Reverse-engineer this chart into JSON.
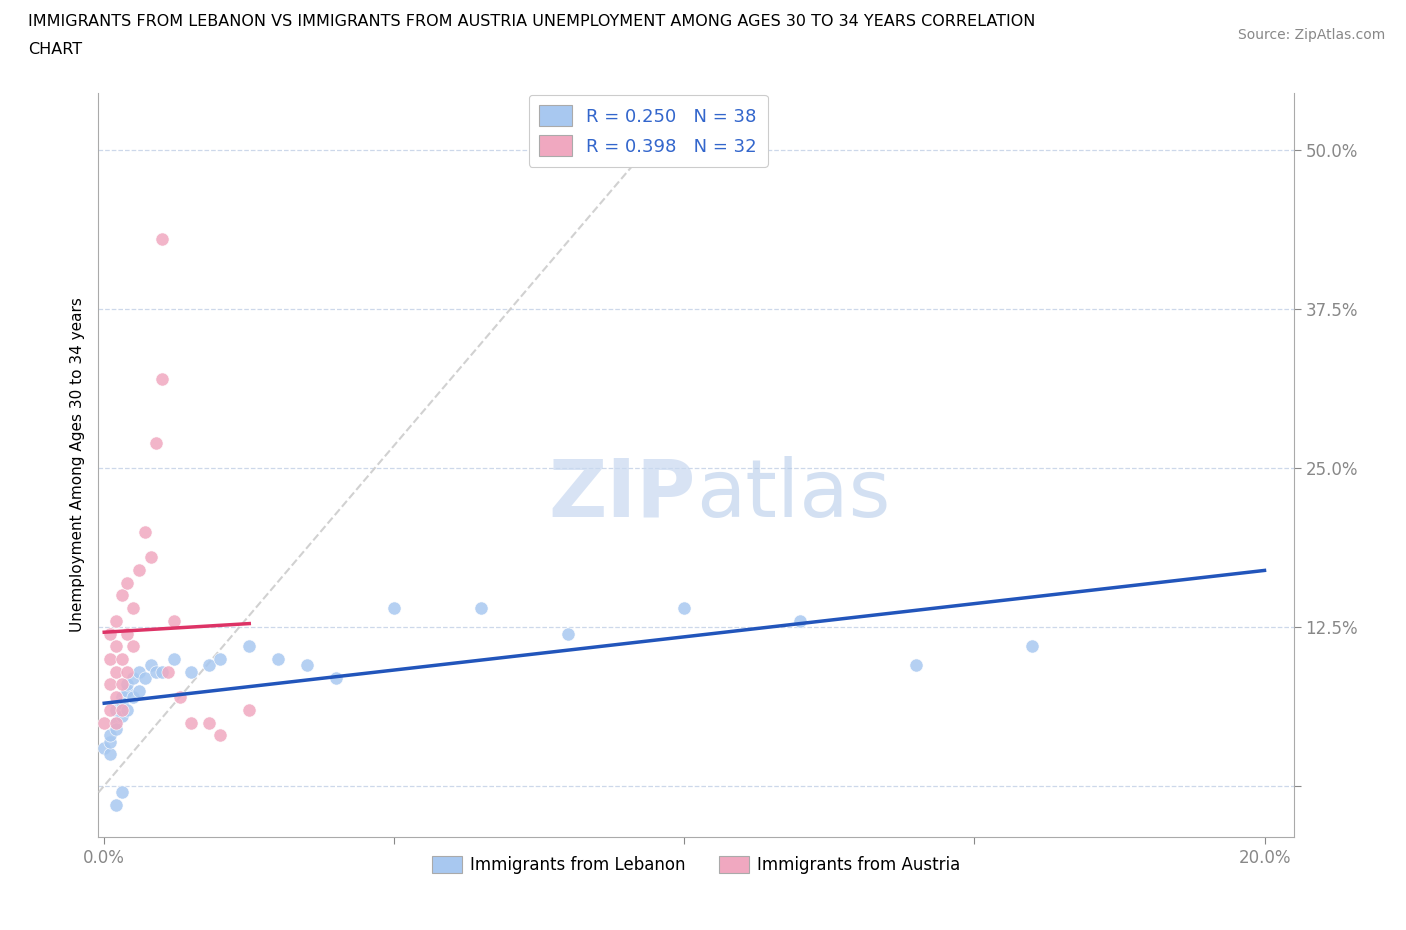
{
  "title_line1": "IMMIGRANTS FROM LEBANON VS IMMIGRANTS FROM AUSTRIA UNEMPLOYMENT AMONG AGES 30 TO 34 YEARS CORRELATION",
  "title_line2": "CHART",
  "source_text": "Source: ZipAtlas.com",
  "ylabel": "Unemployment Among Ages 30 to 34 years",
  "color_lebanon": "#a8c8f0",
  "color_austria": "#f0a8c0",
  "line_color_lebanon": "#2255bb",
  "line_color_austria": "#dd3366",
  "diagonal_color": "#cccccc",
  "watermark_zip_color": "#c8d8f0",
  "watermark_atlas_color": "#b0c8e8",
  "xlim": [
    -0.001,
    0.205
  ],
  "ylim": [
    -0.04,
    0.545
  ],
  "lebanon_x": [
    0.0,
    0.001,
    0.001,
    0.001,
    0.002,
    0.002,
    0.002,
    0.003,
    0.003,
    0.003,
    0.004,
    0.004,
    0.004,
    0.005,
    0.005,
    0.006,
    0.006,
    0.007,
    0.008,
    0.009,
    0.01,
    0.012,
    0.015,
    0.018,
    0.02,
    0.025,
    0.03,
    0.035,
    0.04,
    0.05,
    0.065,
    0.08,
    0.1,
    0.12,
    0.14,
    0.16,
    0.002,
    0.003
  ],
  "lebanon_y": [
    0.03,
    0.025,
    0.035,
    0.04,
    0.05,
    0.06,
    0.045,
    0.055,
    0.07,
    0.065,
    0.06,
    0.075,
    0.08,
    0.07,
    0.085,
    0.075,
    0.09,
    0.085,
    0.095,
    0.09,
    0.09,
    0.1,
    0.09,
    0.095,
    0.1,
    0.11,
    0.1,
    0.095,
    0.085,
    0.14,
    0.14,
    0.12,
    0.14,
    0.13,
    0.095,
    0.11,
    -0.015,
    -0.005
  ],
  "austria_x": [
    0.0,
    0.001,
    0.001,
    0.001,
    0.001,
    0.002,
    0.002,
    0.002,
    0.002,
    0.002,
    0.003,
    0.003,
    0.003,
    0.003,
    0.004,
    0.004,
    0.004,
    0.005,
    0.005,
    0.006,
    0.007,
    0.008,
    0.009,
    0.01,
    0.01,
    0.011,
    0.012,
    0.013,
    0.015,
    0.018,
    0.02,
    0.025
  ],
  "austria_y": [
    0.05,
    0.06,
    0.08,
    0.1,
    0.12,
    0.05,
    0.07,
    0.09,
    0.11,
    0.13,
    0.06,
    0.08,
    0.1,
    0.15,
    0.09,
    0.12,
    0.16,
    0.11,
    0.14,
    0.17,
    0.2,
    0.18,
    0.27,
    0.43,
    0.32,
    0.09,
    0.13,
    0.07,
    0.05,
    0.05,
    0.04,
    0.06
  ]
}
